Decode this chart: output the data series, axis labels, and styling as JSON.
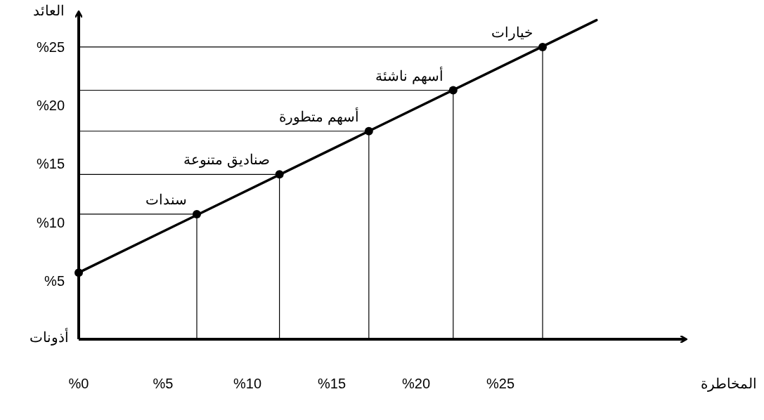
{
  "chart_data": {
    "type": "line",
    "xlabel": "المخاطرة",
    "ylabel": "العائد",
    "xlim": [
      0,
      36
    ],
    "ylim": [
      0,
      28
    ],
    "xticks": [
      {
        "value": 0,
        "label": "%0"
      },
      {
        "value": 5,
        "label": "%5"
      },
      {
        "value": 10,
        "label": "%10"
      },
      {
        "value": 15,
        "label": "%15"
      },
      {
        "value": 20,
        "label": "%20"
      },
      {
        "value": 25,
        "label": "%25"
      }
    ],
    "yticks": [
      {
        "value": 5,
        "label": "%5"
      },
      {
        "value": 10,
        "label": "%10"
      },
      {
        "value": 15,
        "label": "%15"
      },
      {
        "value": 20,
        "label": "%20"
      },
      {
        "value": 25,
        "label": "%25"
      }
    ],
    "grid": false,
    "series": [
      {
        "marker": "none",
        "color": "#000000",
        "x": [
          0,
          30.7
        ],
        "values": [
          5.7,
          27.3
        ]
      },
      {
        "type": "scatter",
        "marker": "circle",
        "color": "#000000",
        "x": [
          0,
          7,
          11.9,
          17.2,
          22.2,
          27.5
        ],
        "values": [
          5.7,
          10.7,
          14.1,
          17.8,
          21.3,
          25
        ]
      },
      {
        "marker": "none",
        "color": "#000000",
        "x": [
          7,
          7,
          0,
          null,
          11.9,
          11.9,
          0,
          null,
          17.2,
          17.2,
          0,
          null,
          22.2,
          22.2,
          0,
          null,
          27.5,
          27.5,
          0
        ],
        "values": [
          0,
          10.7,
          10.7,
          null,
          0,
          14.1,
          14.1,
          null,
          0,
          17.8,
          17.8,
          null,
          0,
          21.3,
          21.3,
          null,
          0,
          25,
          25
        ]
      }
    ],
    "annotations": [
      "أذونات",
      {
        "text": "سندات",
        "x": 7,
        "y": 10.7
      },
      {
        "text": "صناديق متنوعة",
        "x": 11.9,
        "y": 14.1
      },
      {
        "text": "أسهم متطورة",
        "x": 17.2,
        "y": 17.8
      },
      {
        "text": "أسهم ناشئة",
        "x": 22.2,
        "y": 21.3
      },
      {
        "text": "خيارات",
        "x": 27.5,
        "y": 25
      }
    ]
  }
}
